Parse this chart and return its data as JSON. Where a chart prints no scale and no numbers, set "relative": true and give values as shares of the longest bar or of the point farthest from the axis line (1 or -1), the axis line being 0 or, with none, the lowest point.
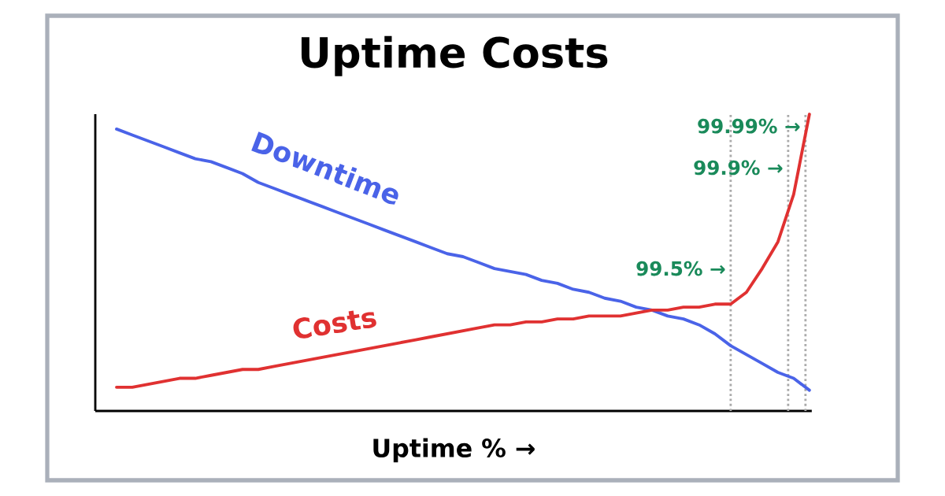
{
  "chart_data": {
    "type": "line",
    "title": "Uptime Costs",
    "xlabel": "Uptime % →",
    "relative": true,
    "tick_labels": false,
    "line_style": "solid",
    "categories": [
      null,
      null,
      null,
      null,
      null,
      null,
      null,
      null,
      null,
      null,
      null,
      null,
      null,
      null,
      null,
      null,
      null,
      null,
      null,
      null,
      null,
      null,
      null,
      null,
      null,
      null,
      null,
      null,
      null,
      null,
      null,
      null,
      null,
      null,
      null,
      null,
      null,
      null,
      null,
      null,
      null,
      null,
      null,
      null,
      null
    ],
    "series": [
      {
        "name": "Downtime",
        "color": "#4a63e8",
        "values": [
          0.95,
          0.93,
          0.91,
          0.89,
          0.87,
          0.85,
          0.84,
          0.82,
          0.8,
          0.77,
          0.75,
          0.73,
          0.71,
          0.69,
          0.67,
          0.65,
          0.63,
          0.61,
          0.59,
          0.57,
          0.55,
          0.53,
          0.52,
          0.5,
          0.48,
          0.47,
          0.46,
          0.44,
          0.43,
          0.41,
          0.4,
          0.38,
          0.37,
          0.35,
          0.34,
          0.32,
          0.31,
          0.29,
          0.26,
          0.22,
          0.19,
          0.16,
          0.13,
          0.11,
          0.07
        ]
      },
      {
        "name": "Costs",
        "color": "#e03131",
        "values": [
          0.08,
          0.08,
          0.09,
          0.1,
          0.11,
          0.11,
          0.12,
          0.13,
          0.14,
          0.14,
          0.15,
          0.16,
          0.17,
          0.18,
          0.19,
          0.2,
          0.21,
          0.22,
          0.23,
          0.24,
          0.25,
          0.26,
          0.27,
          0.28,
          0.29,
          0.29,
          0.3,
          0.3,
          0.31,
          0.31,
          0.32,
          0.32,
          0.32,
          0.33,
          0.34,
          0.34,
          0.35,
          0.35,
          0.36,
          0.36,
          0.4,
          0.48,
          0.57,
          0.73,
          1
        ]
      }
    ],
    "annotations": [
      "99.5% →",
      "99.9% →",
      "99.99% →"
    ]
  }
}
